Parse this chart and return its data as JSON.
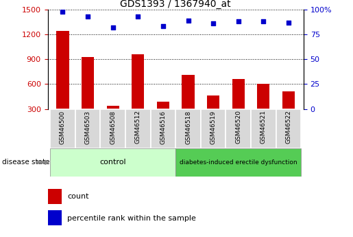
{
  "title": "GDS1393 / 1367940_at",
  "samples": [
    "GSM46500",
    "GSM46503",
    "GSM46508",
    "GSM46512",
    "GSM46516",
    "GSM46518",
    "GSM46519",
    "GSM46520",
    "GSM46521",
    "GSM46522"
  ],
  "counts": [
    1240,
    930,
    340,
    960,
    390,
    710,
    460,
    660,
    600,
    510
  ],
  "percentiles": [
    98,
    93,
    82,
    93,
    83,
    89,
    86,
    88,
    88,
    87
  ],
  "ylim_left": [
    300,
    1500
  ],
  "ylim_right": [
    0,
    100
  ],
  "yticks_left": [
    300,
    600,
    900,
    1200,
    1500
  ],
  "yticks_right": [
    0,
    25,
    50,
    75,
    100
  ],
  "bar_color": "#cc0000",
  "dot_color": "#0000cc",
  "control_bg": "#ccffcc",
  "disease_bg": "#55cc55",
  "sample_box_bg": "#d8d8d8",
  "control_label": "control",
  "disease_label": "diabetes-induced erectile dysfunction",
  "disease_state_label": "disease state",
  "legend_count": "count",
  "legend_pct": "percentile rank within the sample",
  "tick_color_left": "#cc0000",
  "tick_color_right": "#0000cc",
  "title_fontsize": 10,
  "bar_width": 0.5
}
